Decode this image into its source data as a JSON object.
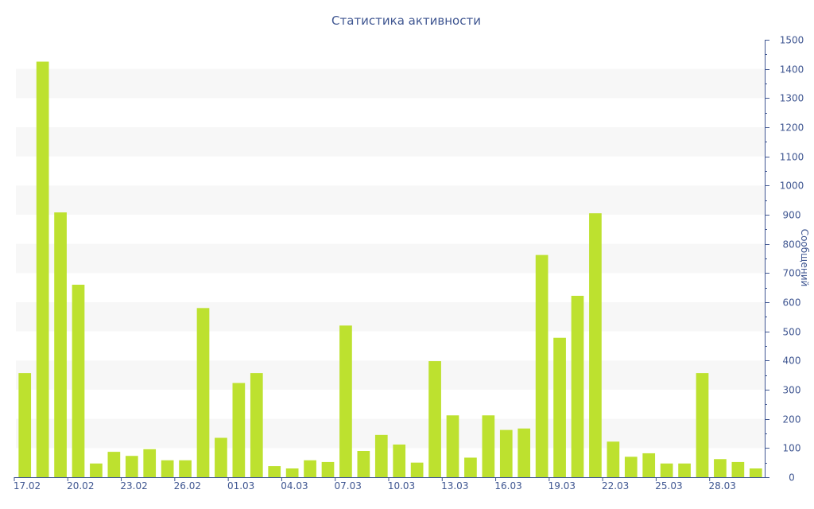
{
  "chart_data": {
    "type": "bar",
    "title": "Статистика активности",
    "xlabel": "",
    "ylabel": "Сообщений",
    "ylim": [
      0,
      1500
    ],
    "y_ticks": [
      0,
      100,
      200,
      300,
      400,
      500,
      600,
      700,
      800,
      900,
      1000,
      1100,
      1200,
      1300,
      1400,
      1500
    ],
    "y_axis_side": "right",
    "grid": "alternating horizontal bands",
    "categories": [
      "17.02",
      "18.02",
      "19.02",
      "20.02",
      "21.02",
      "22.02",
      "23.02",
      "24.02",
      "25.02",
      "26.02",
      "27.02",
      "28.02",
      "01.03",
      "02.03",
      "03.03",
      "04.03",
      "05.03",
      "06.03",
      "07.03",
      "08.03",
      "09.03",
      "10.03",
      "11.03",
      "12.03",
      "13.03",
      "14.03",
      "15.03",
      "16.03",
      "17.03",
      "18.03",
      "19.03",
      "20.03",
      "21.03",
      "22.03",
      "23.03",
      "24.03",
      "25.03",
      "26.03",
      "27.03",
      "28.03",
      "29.03",
      "30.03"
    ],
    "x_tick_labels": [
      "17.02",
      "20.02",
      "23.02",
      "26.02",
      "01.03",
      "04.03",
      "07.03",
      "10.03",
      "13.03",
      "16.03",
      "19.03",
      "22.03",
      "25.03",
      "28.03"
    ],
    "series": [
      {
        "values": [
          357,
          1425,
          908,
          660,
          47,
          87,
          73,
          96,
          58,
          58,
          580,
          135,
          323,
          357,
          38,
          30,
          58,
          52,
          520,
          90,
          145,
          112,
          50,
          398,
          212,
          67,
          212,
          162,
          167,
          762,
          478,
          622,
          905,
          122,
          70,
          82,
          47,
          47,
          357,
          62,
          52,
          30
        ]
      }
    ],
    "colors": {
      "bar": "#bde12f",
      "text": "#3f5691",
      "band": "#f7f7f7",
      "axis": "#3f5691"
    }
  }
}
